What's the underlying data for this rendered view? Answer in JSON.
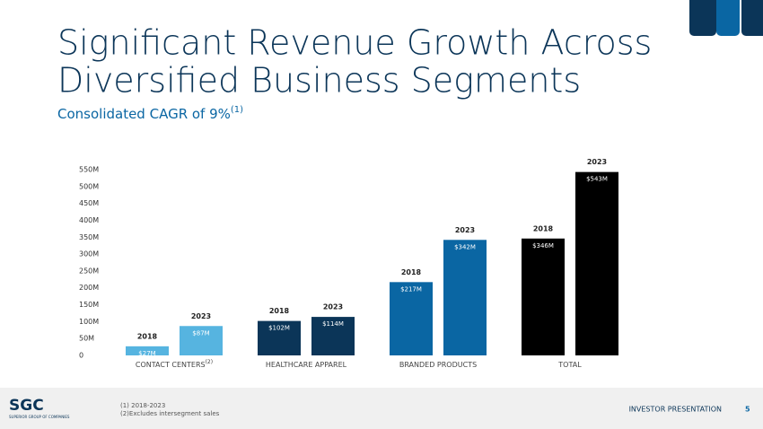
{
  "chart_data": {
    "type": "bar",
    "title": [
      "Significant Revenue Growth Across",
      "Diversified Business Segments"
    ],
    "subtitle": "Consolidated CAGR of 9%",
    "subtitle_note": "(1)",
    "categories": [
      "CONTACT CENTERS",
      "HEALTHCARE APPAREL",
      "BRANDED PRODUCTS",
      "TOTAL"
    ],
    "category_notes": [
      "(2)",
      null,
      null,
      null
    ],
    "colors": [
      "#56b4e0",
      "#0b3558",
      "#0a66a3",
      "#000000"
    ],
    "series": [
      {
        "name": "2018",
        "values": [
          27,
          102,
          217,
          346
        ],
        "value_labels": [
          "$27M",
          "$102M",
          "$217M",
          "$346M"
        ]
      },
      {
        "name": "2023",
        "values": [
          87,
          114,
          342,
          543
        ],
        "value_labels": [
          "$87M",
          "$114M",
          "$342M",
          "$543M"
        ]
      }
    ],
    "ylim": [
      0,
      550
    ],
    "yticks": [
      0,
      {
        "value": 50,
        "label": "50M"
      },
      {
        "value": 100,
        "label": "100M"
      },
      {
        "value": 150,
        "label": "150M"
      },
      {
        "value": 200,
        "label": "200M"
      },
      {
        "value": 250,
        "label": "250M"
      },
      {
        "value": 300,
        "label": "300M"
      },
      {
        "value": 350,
        "label": "350M"
      },
      {
        "value": 400,
        "label": "400M"
      },
      {
        "value": 450,
        "label": "450M"
      },
      {
        "value": 500,
        "label": "500M"
      },
      {
        "value": 550,
        "label": "550M"
      }
    ],
    "grid": false
  },
  "footer": {
    "logo": "SGC",
    "company": "SUPERIOR GROUP OF COMPANIES",
    "footnotes": [
      "(1) 2018-2023",
      "(2)Excludes intersegment sales"
    ],
    "label": "INVESTOR PRESENTATION",
    "page": "5"
  }
}
